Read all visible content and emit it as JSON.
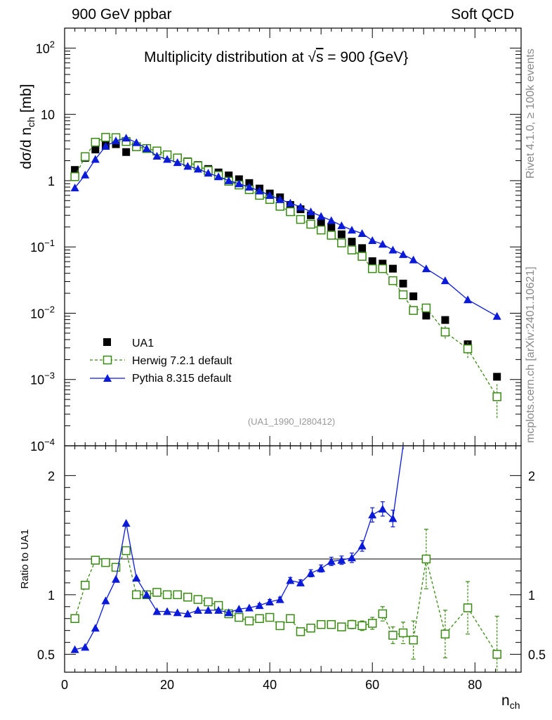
{
  "header": {
    "left": "900 GeV ppbar",
    "right": "Soft QCD"
  },
  "side_labels": {
    "rivet": "Rivet 4.1.0, ≥ 100k events",
    "mcplots": "mcplots.cern.ch [arXiv:2401.10621]"
  },
  "colors": {
    "data": "#000000",
    "herwig": "#3a8a14",
    "pythia": "#0a1ad8",
    "watermark": "#999999"
  },
  "chart_data": [
    {
      "type": "scatter",
      "panel": "main",
      "title": "Multiplicity distribution at √s = 900 {GeV}",
      "title_parts": {
        "prefix": "Multiplicity distribution at ",
        "sqrt": "√",
        "var": "s",
        "suffix": " = 900 {GeV}"
      },
      "ylabel": "dσ/d n_ch [mb]",
      "ylabel_parts": {
        "main": "dσ/d n",
        "sub": "ch",
        "unit": " [mb]"
      },
      "yscale": "log",
      "ylim": [
        0.0001,
        200
      ],
      "xlim": [
        0,
        89
      ],
      "yticks": [
        {
          "v": 0.0001,
          "m": "10",
          "e": "−4"
        },
        {
          "v": 0.001,
          "m": "10",
          "e": "−3"
        },
        {
          "v": 0.01,
          "m": "10",
          "e": "−2"
        },
        {
          "v": 0.1,
          "m": "10",
          "e": "−1"
        },
        {
          "v": 1,
          "m": "1",
          "e": ""
        },
        {
          "v": 10,
          "m": "10",
          "e": ""
        },
        {
          "v": 100,
          "m": "10",
          "e": "2"
        }
      ],
      "watermark": "(UA1_1990_I280412)",
      "legend_position": "bottom-left",
      "series": [
        {
          "name": "UA1",
          "key": "data",
          "marker": "filled-square",
          "x": [
            2,
            4,
            6,
            8,
            10,
            12,
            14,
            16,
            18,
            20,
            22,
            24,
            26,
            28,
            30,
            32,
            34,
            36,
            38,
            40,
            42,
            44,
            46,
            48,
            50,
            52,
            54,
            56,
            58,
            60,
            62,
            64,
            66,
            68,
            70.5,
            74.2,
            78.6,
            84.3
          ],
          "y": [
            1.45,
            2.2,
            2.95,
            3.45,
            3.55,
            2.7,
            3.3,
            3.05,
            2.75,
            2.45,
            2.2,
            1.95,
            1.72,
            1.5,
            1.33,
            1.2,
            1.05,
            0.92,
            0.76,
            0.64,
            0.56,
            0.43,
            0.37,
            0.3,
            0.235,
            0.2,
            0.155,
            0.12,
            0.096,
            0.061,
            0.056,
            0.047,
            0.028,
            0.018,
            0.0092,
            0.0079,
            0.0034,
            0.0011
          ]
        },
        {
          "name": "Herwig 7.2.1 default",
          "key": "herwig",
          "marker": "open-square",
          "line": "dashed",
          "x": [
            2,
            4,
            6,
            8,
            10,
            12,
            14,
            16,
            18,
            20,
            22,
            24,
            26,
            28,
            30,
            32,
            34,
            36,
            38,
            40,
            42,
            44,
            46,
            48,
            50,
            52,
            54,
            56,
            58,
            60,
            62,
            64,
            66,
            68,
            70.5,
            74.2,
            78.6,
            84.3
          ],
          "y": [
            1.15,
            2.3,
            3.8,
            4.5,
            4.45,
            3.9,
            3.25,
            3.05,
            2.8,
            2.45,
            2.2,
            1.9,
            1.67,
            1.42,
            1.2,
            0.98,
            0.86,
            0.73,
            0.6,
            0.52,
            0.41,
            0.34,
            0.26,
            0.22,
            0.18,
            0.15,
            0.115,
            0.09,
            0.072,
            0.047,
            0.047,
            0.031,
            0.019,
            0.011,
            0.012,
            0.0052,
            0.0029,
            0.00055
          ],
          "err_y": [
            0,
            0,
            0,
            0,
            0,
            0,
            0,
            0,
            0,
            0,
            0,
            0,
            0,
            0,
            0,
            0,
            0,
            0,
            0,
            0,
            0,
            0,
            0,
            0,
            0,
            0,
            0,
            0,
            0,
            0,
            0,
            0,
            0,
            0,
            0,
            0.0012,
            0.0008,
            0.0003
          ]
        },
        {
          "name": "Pythia 8.315 default",
          "key": "pythia",
          "marker": "filled-triangle",
          "line": "solid",
          "x": [
            2,
            4,
            6,
            8,
            10,
            12,
            14,
            16,
            18,
            20,
            22,
            24,
            26,
            28,
            30,
            32,
            34,
            36,
            38,
            40,
            42,
            44,
            46,
            48,
            50,
            52,
            54,
            56,
            58,
            60,
            62,
            64,
            66,
            68,
            70.5,
            74.2,
            78.6,
            84.3
          ],
          "y": [
            0.78,
            1.22,
            2.1,
            3.3,
            4.0,
            4.4,
            3.75,
            3.05,
            2.35,
            2.1,
            1.88,
            1.65,
            1.5,
            1.3,
            1.15,
            1.0,
            0.9,
            0.8,
            0.7,
            0.6,
            0.52,
            0.46,
            0.4,
            0.34,
            0.29,
            0.25,
            0.21,
            0.18,
            0.16,
            0.125,
            0.11,
            0.09,
            0.077,
            0.064,
            0.047,
            0.031,
            0.016,
            0.009
          ]
        }
      ]
    },
    {
      "type": "scatter",
      "panel": "ratio",
      "ylabel": "Ratio to UA1",
      "xlabel": "n_ch",
      "xlabel_parts": {
        "main": "n",
        "sub": "ch"
      },
      "ylim": [
        0.35,
        2.25
      ],
      "xlim": [
        0,
        89
      ],
      "yticks": [
        0.5,
        1,
        2
      ],
      "ytick_labels": [
        "0.5",
        "1",
        "2"
      ],
      "xticks": [
        0,
        20,
        40,
        60,
        80
      ],
      "xtick_labels": [
        "0",
        "20",
        "40",
        "60",
        "80"
      ],
      "reference_line": 1,
      "series": [
        {
          "name": "Herwig 7.2.1 default",
          "key": "herwig",
          "x": [
            2,
            4,
            6,
            8,
            10,
            12,
            14,
            16,
            18,
            20,
            22,
            24,
            26,
            28,
            30,
            32,
            34,
            36,
            38,
            40,
            42,
            44,
            46,
            48,
            50,
            52,
            54,
            56,
            58,
            60,
            62,
            64,
            66,
            68,
            70.5,
            74.2,
            78.6,
            84.3
          ],
          "y": [
            0.8,
            1.08,
            1.29,
            1.27,
            1.23,
            1.37,
            1.0,
            1.0,
            1.02,
            1.0,
            1.0,
            0.98,
            0.96,
            0.94,
            0.91,
            0.84,
            0.81,
            0.78,
            0.8,
            0.81,
            0.74,
            0.8,
            0.69,
            0.72,
            0.75,
            0.75,
            0.73,
            0.75,
            0.74,
            0.76,
            0.84,
            0.66,
            0.68,
            0.62,
            1.3,
            0.67,
            0.89,
            0.5
          ],
          "err_y": [
            0,
            0,
            0,
            0,
            0,
            0,
            0,
            0,
            0,
            0,
            0,
            0,
            0,
            0,
            0,
            0,
            0,
            0,
            0,
            0,
            0.015,
            0.025,
            0.025,
            0.025,
            0.03,
            0.03,
            0.03,
            0.035,
            0.04,
            0.05,
            0.06,
            0.07,
            0.09,
            0.16,
            0.25,
            0.2,
            0.22,
            0.32
          ]
        },
        {
          "name": "Pythia 8.315 default",
          "key": "pythia",
          "x": [
            2,
            4,
            6,
            8,
            10,
            12,
            14,
            16,
            18,
            20,
            22,
            24,
            26,
            28,
            30,
            32,
            34,
            36,
            38,
            40,
            42,
            44,
            46,
            48,
            50,
            52,
            54,
            56,
            58,
            60,
            62,
            64,
            66
          ],
          "y": [
            0.54,
            0.56,
            0.72,
            0.95,
            1.13,
            1.6,
            1.14,
            1.0,
            0.86,
            0.86,
            0.85,
            0.84,
            0.87,
            0.87,
            0.87,
            0.85,
            0.88,
            0.89,
            0.91,
            0.94,
            0.96,
            1.12,
            1.1,
            1.18,
            1.22,
            1.28,
            1.29,
            1.31,
            1.41,
            1.67,
            1.72,
            1.64,
            2.25
          ],
          "err_y": [
            0,
            0,
            0,
            0,
            0,
            0,
            0,
            0,
            0,
            0,
            0,
            0,
            0,
            0,
            0,
            0,
            0,
            0,
            0.015,
            0.02,
            0.02,
            0.025,
            0.025,
            0.03,
            0.03,
            0.035,
            0.035,
            0.04,
            0.045,
            0.06,
            0.06,
            0.07,
            0
          ]
        }
      ]
    }
  ]
}
